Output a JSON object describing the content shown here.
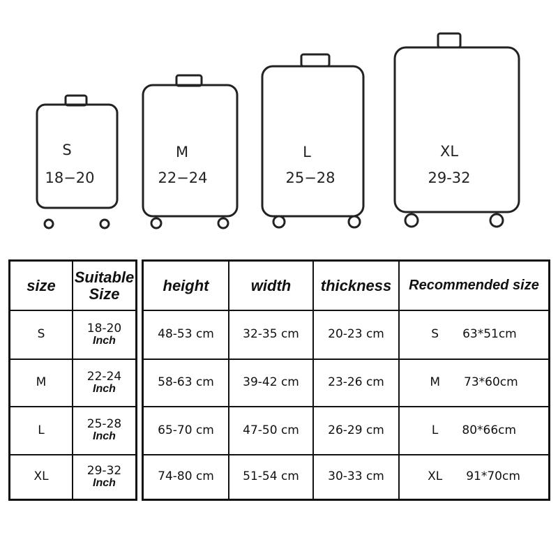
{
  "suitcases": [
    {
      "size": "S",
      "range": "18−20"
    },
    {
      "size": "M",
      "range": "22−24"
    },
    {
      "size": "L",
      "range": "25−28"
    },
    {
      "size": "XL",
      "range": "29-32"
    }
  ],
  "left_table": {
    "headers": [
      "size",
      "Suitable",
      "Size"
    ],
    "unit": "Inch",
    "rows": [
      {
        "size": "S",
        "suitable": "18-20"
      },
      {
        "size": "M",
        "suitable": "22-24"
      },
      {
        "size": "L",
        "suitable": "25-28"
      },
      {
        "size": "XL",
        "suitable": "29-32"
      }
    ]
  },
  "right_table": {
    "headers": [
      "height",
      "width",
      "thickness",
      "Recommended size"
    ],
    "rows": [
      {
        "height": "48-53 cm",
        "width": "32-35 cm",
        "thickness": "20-23 cm",
        "rec_size": "S",
        "rec_dim": "63*51cm"
      },
      {
        "height": "58-63 cm",
        "width": "39-42 cm",
        "thickness": "23-26 cm",
        "rec_size": "M",
        "rec_dim": "73*60cm"
      },
      {
        "height": "65-70 cm",
        "width": "47-50 cm",
        "thickness": "26-29 cm",
        "rec_size": "L",
        "rec_dim": "80*66cm"
      },
      {
        "height": "74-80 cm",
        "width": "51-54 cm",
        "thickness": "30-33 cm",
        "rec_size": "XL",
        "rec_dim": "91*70cm"
      }
    ]
  }
}
